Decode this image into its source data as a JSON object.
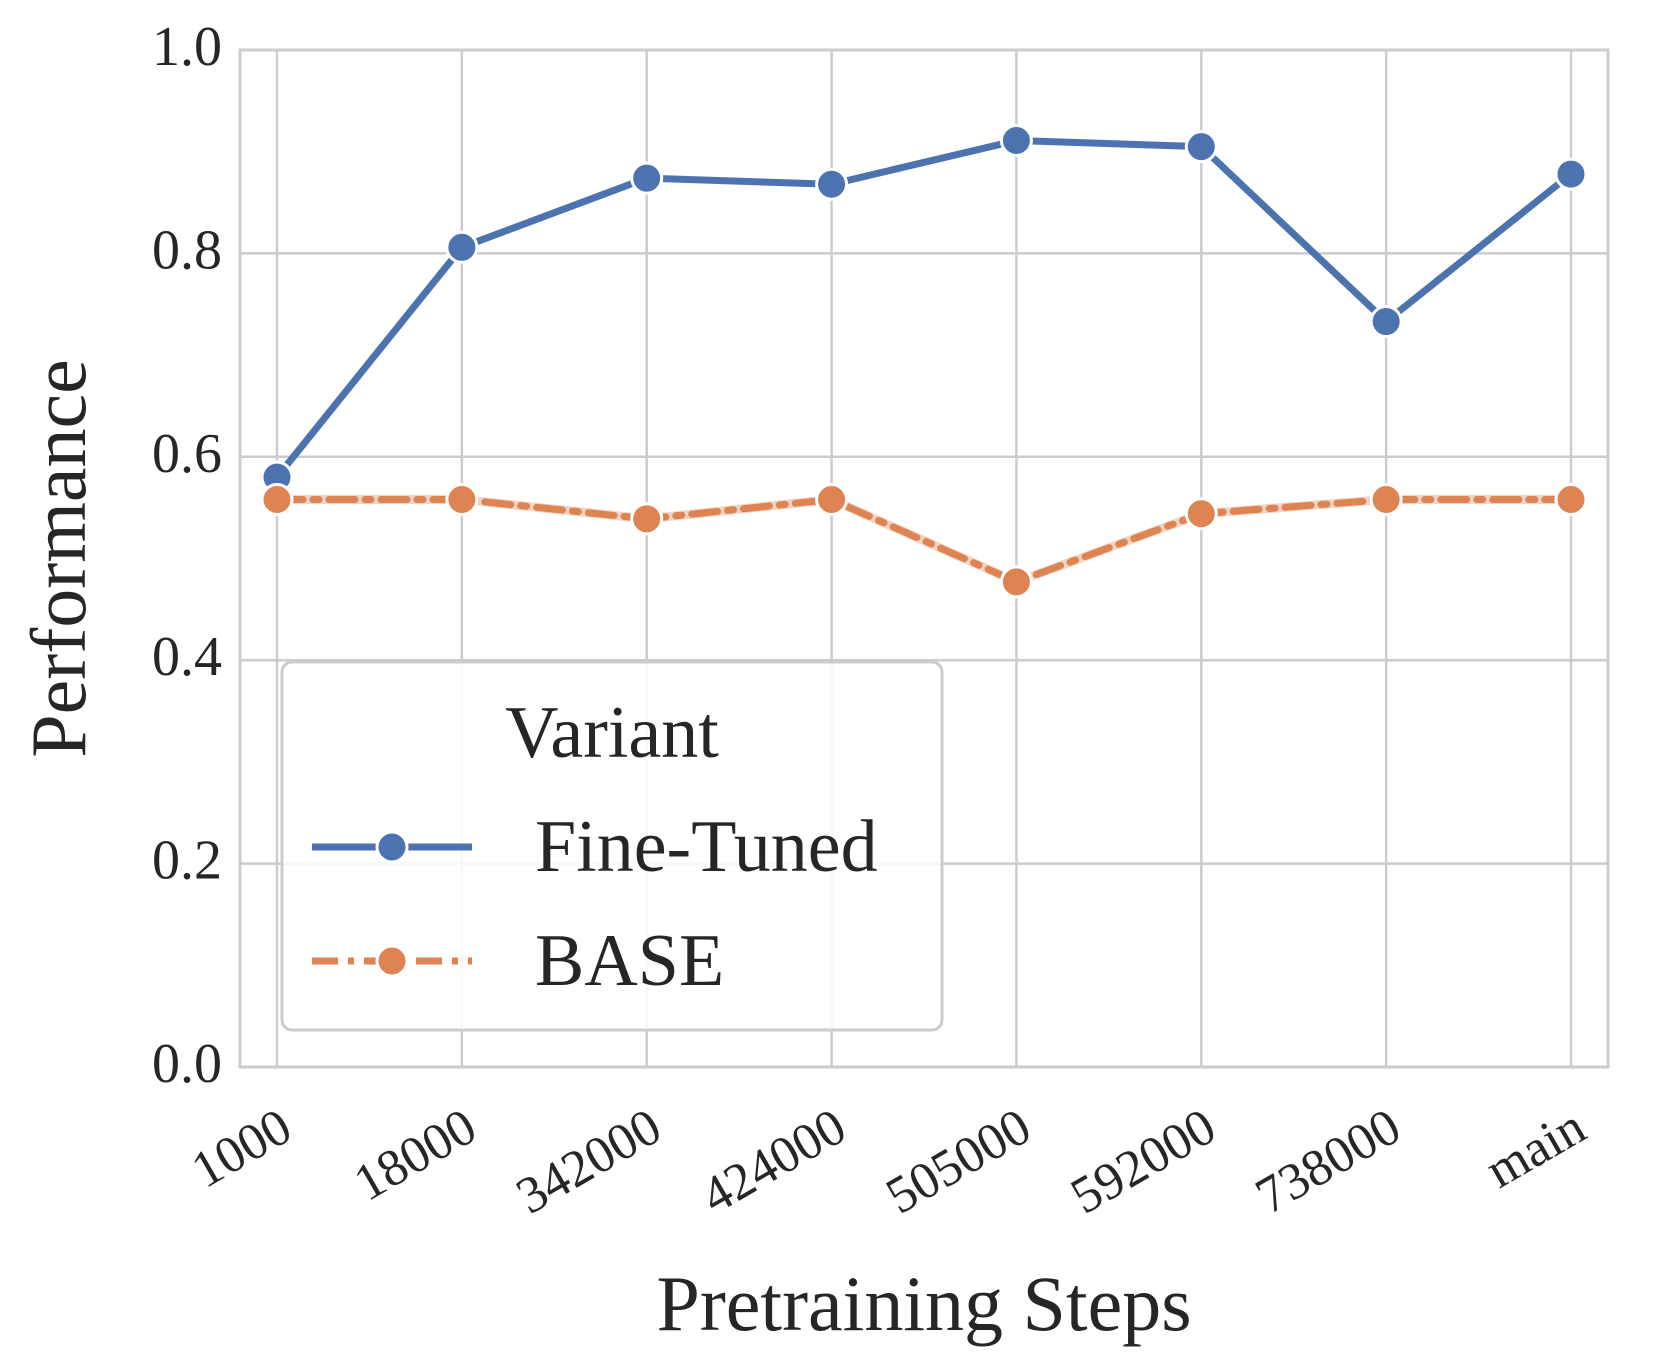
{
  "chart_data": {
    "type": "line",
    "xlabel": "Pretraining Steps",
    "ylabel": "Performance",
    "categories": [
      "1000",
      "18000",
      "342000",
      "424000",
      "505000",
      "592000",
      "738000",
      "main"
    ],
    "ylim": [
      0.0,
      1.0
    ],
    "yticks": [
      "0.0",
      "0.2",
      "0.4",
      "0.6",
      "0.8",
      "1.0"
    ],
    "grid": true,
    "legend": {
      "title": "Variant",
      "placement": "lower-left"
    },
    "series": [
      {
        "name": "Fine-Tuned",
        "color": "#4c72b0",
        "line_style": "solid",
        "marker": "circle",
        "values": [
          0.58,
          0.806,
          0.874,
          0.868,
          0.911,
          0.905,
          0.733,
          0.878
        ]
      },
      {
        "name": "BASE",
        "color": "#dd8452",
        "line_style": "dash-dot",
        "marker": "circle",
        "values": [
          0.558,
          0.558,
          0.539,
          0.558,
          0.477,
          0.544,
          0.558,
          0.558
        ]
      }
    ]
  }
}
